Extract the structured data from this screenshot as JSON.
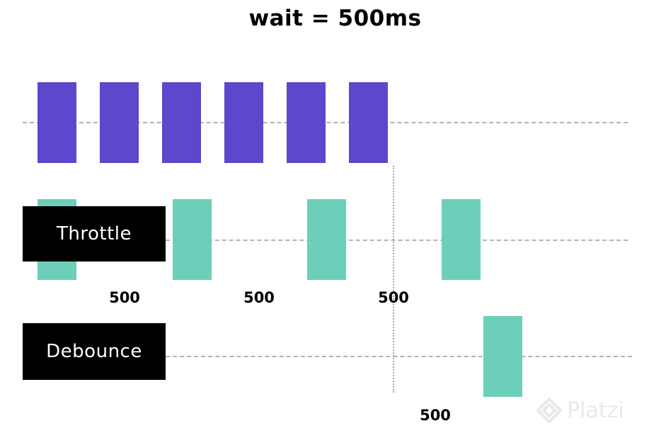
{
  "title": "wait = 500ms",
  "rows": {
    "throttle": {
      "label": "Throttle"
    },
    "debounce": {
      "label": "Debounce"
    }
  },
  "intervals": {
    "throttle": [
      "500",
      "500",
      "500"
    ],
    "debounce": [
      "500"
    ]
  },
  "colors": {
    "event": "#5b48cc",
    "output": "#6ccfb9",
    "label_bg": "#000000",
    "label_text": "#ffffff",
    "guide_line": "#b3b3b3"
  },
  "watermark": {
    "text": "Platzi",
    "icon": "platzi-logo-icon"
  }
}
